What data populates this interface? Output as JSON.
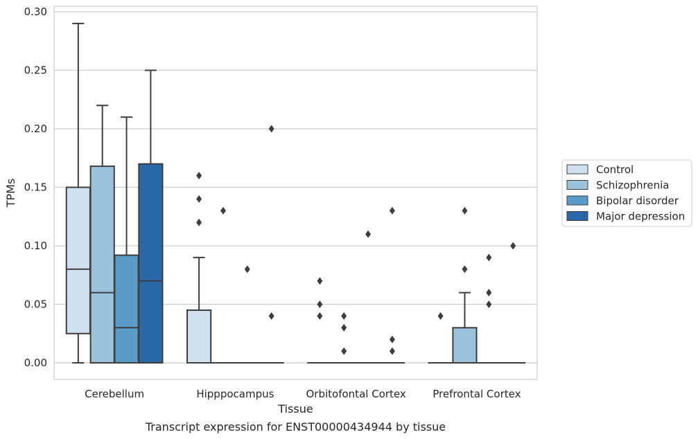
{
  "chart_data": {
    "type": "box",
    "caption": "Transcript expression for ENST00000434944 by tissue",
    "xlabel": "Tissue",
    "ylabel": "TPMs",
    "ylim": [
      -0.014,
      0.304
    ],
    "yticks": [
      0.0,
      0.05,
      0.1,
      0.15,
      0.2,
      0.25,
      0.3
    ],
    "ytick_labels": [
      "0.00",
      "0.05",
      "0.10",
      "0.15",
      "0.20",
      "0.25",
      "0.30"
    ],
    "grid": "horizontal",
    "legend_position": "right",
    "categories": [
      "Cerebellum",
      "Hipppocampus",
      "Orbitofontal Cortex",
      "Prefrontal Cortex"
    ],
    "series": [
      {
        "name": "Control",
        "color": "#d0e0ef",
        "boxes": [
          {
            "whislo": 0.0,
            "q1": 0.025,
            "med": 0.08,
            "q3": 0.15,
            "whishi": 0.29,
            "fliers": []
          },
          {
            "whislo": 0.0,
            "q1": 0.0,
            "med": 0.0,
            "q3": 0.045,
            "whishi": 0.09,
            "fliers": [
              0.12,
              0.14,
              0.16
            ]
          },
          {
            "whislo": 0.0,
            "q1": 0.0,
            "med": 0.0,
            "q3": 0.0,
            "whishi": 0.0,
            "fliers": [
              0.04,
              0.05,
              0.07
            ]
          },
          {
            "whislo": 0.0,
            "q1": 0.0,
            "med": 0.0,
            "q3": 0.0,
            "whishi": 0.0,
            "fliers": [
              0.04
            ]
          }
        ]
      },
      {
        "name": "Schizophrenia",
        "color": "#9ac2db",
        "boxes": [
          {
            "whislo": 0.0,
            "q1": 0.0,
            "med": 0.06,
            "q3": 0.168,
            "whishi": 0.22,
            "fliers": []
          },
          {
            "whislo": 0.0,
            "q1": 0.0,
            "med": 0.0,
            "q3": 0.0,
            "whishi": 0.0,
            "fliers": [
              0.13
            ]
          },
          {
            "whislo": 0.0,
            "q1": 0.0,
            "med": 0.0,
            "q3": 0.0,
            "whishi": 0.0,
            "fliers": [
              0.01,
              0.03,
              0.04
            ]
          },
          {
            "whislo": 0.0,
            "q1": 0.0,
            "med": 0.0,
            "q3": 0.03,
            "whishi": 0.06,
            "fliers": [
              0.08,
              0.13
            ]
          }
        ]
      },
      {
        "name": "Bipolar disorder",
        "color": "#5a9bc7",
        "boxes": [
          {
            "whislo": 0.0,
            "q1": 0.0,
            "med": 0.03,
            "q3": 0.092,
            "whishi": 0.21,
            "fliers": []
          },
          {
            "whislo": 0.0,
            "q1": 0.0,
            "med": 0.0,
            "q3": 0.0,
            "whishi": 0.0,
            "fliers": [
              0.08
            ]
          },
          {
            "whislo": 0.0,
            "q1": 0.0,
            "med": 0.0,
            "q3": 0.0,
            "whishi": 0.0,
            "fliers": [
              0.11
            ]
          },
          {
            "whislo": 0.0,
            "q1": 0.0,
            "med": 0.0,
            "q3": 0.0,
            "whishi": 0.0,
            "fliers": [
              0.05,
              0.06,
              0.09
            ]
          }
        ]
      },
      {
        "name": "Major depression",
        "color": "#2a69a8",
        "boxes": [
          {
            "whislo": 0.0,
            "q1": 0.0,
            "med": 0.07,
            "q3": 0.17,
            "whishi": 0.25,
            "fliers": []
          },
          {
            "whislo": 0.0,
            "q1": 0.0,
            "med": 0.0,
            "q3": 0.0,
            "whishi": 0.0,
            "fliers": [
              0.04,
              0.2
            ]
          },
          {
            "whislo": 0.0,
            "q1": 0.0,
            "med": 0.0,
            "q3": 0.0,
            "whishi": 0.0,
            "fliers": [
              0.01,
              0.02,
              0.13
            ]
          },
          {
            "whislo": 0.0,
            "q1": 0.0,
            "med": 0.0,
            "q3": 0.0,
            "whishi": 0.0,
            "fliers": [
              0.1
            ]
          }
        ]
      }
    ]
  }
}
